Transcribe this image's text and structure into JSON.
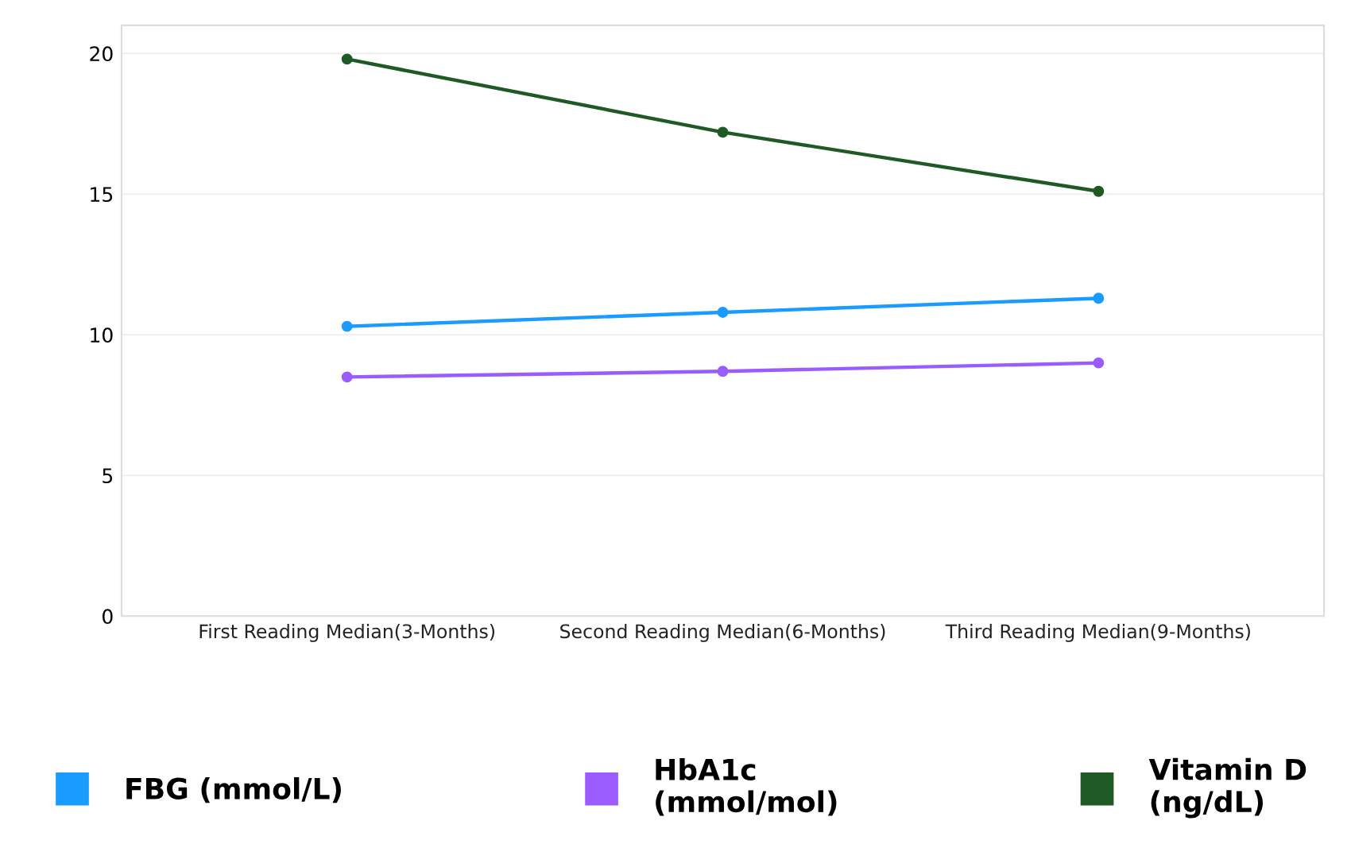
{
  "chart_data": {
    "type": "line",
    "categories": [
      "First Reading Median(3-Months)",
      "Second Reading Median(6-Months)",
      "Third Reading Median(9-Months)"
    ],
    "series": [
      {
        "name": "FBG (mmol/L)",
        "color": "#1a9bff",
        "values": [
          10.3,
          10.8,
          11.3
        ]
      },
      {
        "name": "HbA1c\n(mmol/mol)",
        "color": "#9b5cff",
        "values": [
          8.5,
          8.7,
          9.0
        ]
      },
      {
        "name": "Vitamin D\n(ng/dL)",
        "color": "#1f5a24",
        "values": [
          19.8,
          17.2,
          15.1
        ]
      }
    ],
    "ylim": [
      0,
      21
    ],
    "yticks": [
      0,
      5,
      10,
      15,
      20
    ],
    "grid": "y",
    "legend": "bottom",
    "marker": "circle",
    "line_style": "solid"
  }
}
